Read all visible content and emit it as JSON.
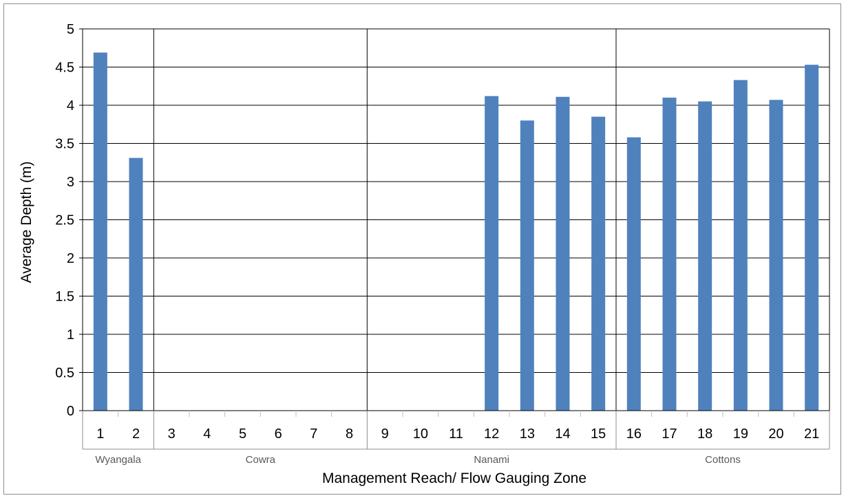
{
  "chart_data": {
    "type": "bar",
    "title": "",
    "xlabel": "Management Reach/ Flow Gauging Zone",
    "ylabel": "Average Depth (m)",
    "ylim": [
      0,
      5
    ],
    "yticks": [
      "0",
      "0.5",
      "1",
      "1.5",
      "2",
      "2.5",
      "3",
      "3.5",
      "4",
      "4.5",
      "5"
    ],
    "grid": true,
    "legend": "none",
    "categories": [
      "1",
      "2",
      "3",
      "4",
      "5",
      "6",
      "7",
      "8",
      "9",
      "10",
      "11",
      "12",
      "13",
      "14",
      "15",
      "16",
      "17",
      "18",
      "19",
      "20",
      "21"
    ],
    "values": [
      4.69,
      3.31,
      0,
      0,
      0,
      0,
      0,
      0,
      0,
      0,
      0,
      4.12,
      3.8,
      4.11,
      3.85,
      3.58,
      4.1,
      4.05,
      4.33,
      4.07,
      4.53
    ],
    "groups": [
      {
        "name": "Wyangala",
        "categories": [
          "1",
          "2"
        ]
      },
      {
        "name": "Cowra",
        "categories": [
          "3",
          "4",
          "5",
          "6",
          "7",
          "8"
        ]
      },
      {
        "name": "Nanami",
        "categories": [
          "9",
          "10",
          "11",
          "12",
          "13",
          "14",
          "15"
        ]
      },
      {
        "name": "Cottons",
        "categories": [
          "16",
          "17",
          "18",
          "19",
          "20",
          "21"
        ]
      }
    ],
    "colors": {
      "bar": "#4f81bd",
      "grid": "#000000",
      "axis": "#000000",
      "tick_mark": "#8c8c8c"
    }
  }
}
